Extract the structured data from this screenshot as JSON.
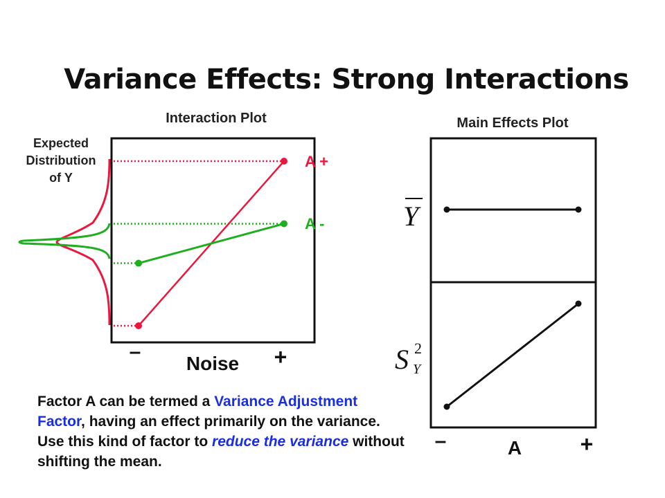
{
  "title": "Variance Effects: Strong Interactions",
  "interaction_plot": {
    "title": "Interaction Plot",
    "distribution_label": [
      "Expected",
      "Distribution",
      "of Y"
    ],
    "x_axis_label": "Noise",
    "x_minus": "–",
    "x_plus": "+",
    "line_a_plus": {
      "label": "A +",
      "color": "#e8193c",
      "noise_minus": 0.0,
      "noise_plus": 1.0
    },
    "line_a_minus": {
      "label": "A -",
      "color": "#1fae1f",
      "noise_minus": 0.38,
      "noise_plus": 0.62
    }
  },
  "main_effects_plot": {
    "title": "Main Effects Plot",
    "mean_label": "Y",
    "variance_label_base": "S",
    "variance_label_sup": "2",
    "variance_label_sub": "Y",
    "x_axis_label": "A",
    "x_minus": "–",
    "x_plus": "+",
    "mean_panel": {
      "a_minus": 0.5,
      "a_plus": 0.5
    },
    "variance_panel": {
      "a_minus": 0.0,
      "a_plus": 1.0
    }
  },
  "caption": {
    "part1": "Factor A can be termed a ",
    "highlight1": "Variance Adjustment Factor",
    "part2": ", having an effect primarily on the variance.  Use this kind of factor to ",
    "highlight2": "reduce the variance",
    "part3": " without shifting the mean."
  }
}
